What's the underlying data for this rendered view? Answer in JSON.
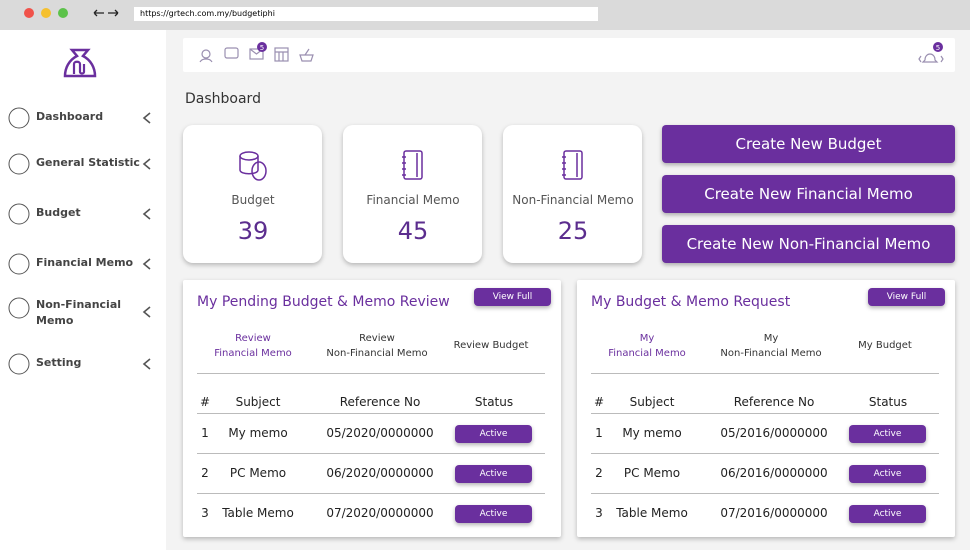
{
  "browser": {
    "url": "https://grtech.com.my/budgetiphi"
  },
  "toolbar": {
    "mail_badge": 5,
    "bell_badge": 5
  },
  "sidebar": {
    "items": [
      [
        "Dashboard"
      ],
      [
        "General Statistic"
      ],
      [
        "Budget"
      ],
      [
        "Financial Memo"
      ],
      [
        "Non-Financial",
        "Memo"
      ],
      [
        "Setting"
      ]
    ]
  },
  "page_title": "Dashboard",
  "stats": [
    {
      "label": "Budget",
      "value": 39
    },
    {
      "label": "Financial Memo",
      "value": 45
    },
    {
      "label": "Non-Financial Memo",
      "value": 25
    }
  ],
  "actions": [
    "Create New Budget",
    "Create New Financial Memo",
    "Create New Non-Financial Memo"
  ],
  "panels": [
    {
      "title": "My Pending Budget & Memo Review",
      "button": "View Full",
      "tabs": [
        [
          "Review",
          "Financial Memo"
        ],
        [
          "Review",
          "Non-Financial Memo"
        ],
        [
          "Review Budget"
        ]
      ],
      "columns": [
        "#",
        "Subject",
        "Reference No",
        "Status"
      ],
      "rows": [
        [
          1,
          "My memo",
          "05/2020/0000000",
          "Active"
        ],
        [
          2,
          "PC Memo",
          "06/2020/0000000",
          "Active"
        ],
        [
          3,
          "Table Memo",
          "07/2020/0000000",
          "Active"
        ]
      ]
    },
    {
      "title": "My Budget & Memo Request",
      "button": "View Full",
      "tabs": [
        [
          "My",
          "Financial Memo"
        ],
        [
          "My",
          "Non-Financial Memo"
        ],
        [
          "My Budget"
        ]
      ],
      "columns": [
        "#",
        "Subject",
        "Reference No",
        "Status"
      ],
      "rows": [
        [
          1,
          "My memo",
          "05/2016/0000000",
          "Active"
        ],
        [
          2,
          "PC Memo",
          "06/2016/0000000",
          "Active"
        ],
        [
          3,
          "Table Memo",
          "07/2016/0000000",
          "Active"
        ]
      ]
    }
  ]
}
